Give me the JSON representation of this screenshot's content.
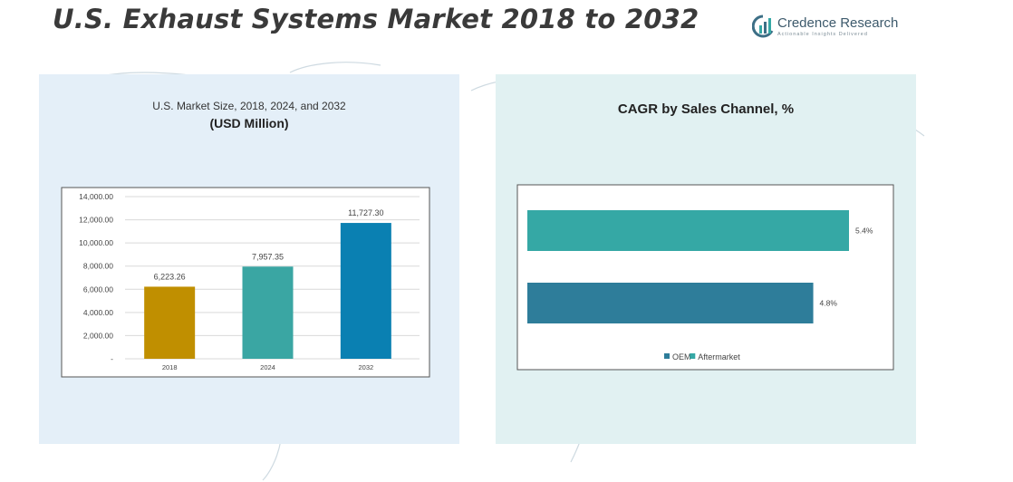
{
  "header": {
    "title": "U.S. Exhaust Systems Market 2018 to 2032",
    "logo_name": "Credence Research",
    "logo_tagline": "Actionable Insights Delivered",
    "logo_icon": "credence-logo-icon"
  },
  "colors": {
    "panel_left_bg": "#e4eff8",
    "panel_right_bg": "#e1f1f2",
    "bar_2018": "#c08f00",
    "bar_2024": "#3aa6a3",
    "bar_2032": "#0a80b2",
    "oem": "#2e7d9a",
    "aftermarket": "#35a8a5"
  },
  "chart_data": [
    {
      "type": "bar",
      "title_line1": "U.S. Market Size, 2018, 2024, and 2032",
      "title_line2": "(USD Million)",
      "categories": [
        "2018",
        "2024",
        "2032"
      ],
      "values": [
        6223.26,
        7957.35,
        11727.3
      ],
      "value_labels": [
        "6,223.26",
        "7,957.35",
        "11,727.30"
      ],
      "y_ticks": [
        0,
        2000,
        4000,
        6000,
        8000,
        10000,
        12000,
        14000
      ],
      "y_tick_labels": [
        "-",
        "2,000.00",
        "4,000.00",
        "6,000.00",
        "8,000.00",
        "10,000.00",
        "12,000.00",
        "14,000.00"
      ],
      "ylim": [
        0,
        14000
      ],
      "grid": true,
      "xlabel": "",
      "ylabel": ""
    },
    {
      "type": "bar",
      "orientation": "horizontal",
      "title": "CAGR by Sales Channel, %",
      "categories": [
        "Aftermarket",
        "OEM"
      ],
      "values": [
        5.4,
        4.8
      ],
      "value_labels": [
        "5.4%",
        "4.8%"
      ],
      "legend": [
        "OEM",
        "Aftermarket"
      ],
      "legend_position": "bottom"
    }
  ]
}
